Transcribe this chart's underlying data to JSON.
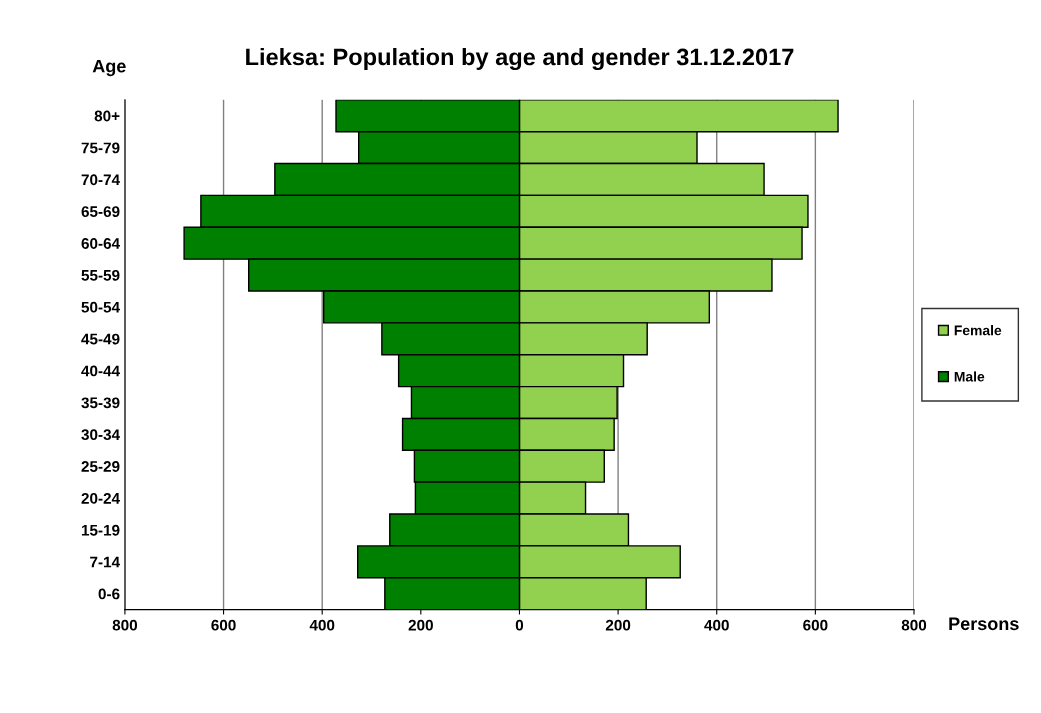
{
  "chart_data": {
    "type": "bar",
    "orientation": "horizontal",
    "stacked": true,
    "title": "Lieksa: Population by age and gender 31.12.2017",
    "xlabel": "Persons",
    "ylabel": "Age",
    "categories": [
      "80+",
      "75-79",
      "70-74",
      "65-69",
      "60-64",
      "55-59",
      "50-54",
      "45-49",
      "40-44",
      "35-39",
      "30-34",
      "25-29",
      "20-24",
      "15-19",
      "7-14",
      "0-6"
    ],
    "series": [
      {
        "name": "Female",
        "color": "#92d050",
        "values": [
          646,
          360,
          496,
          585,
          573,
          512,
          385,
          259,
          211,
          198,
          192,
          172,
          134,
          221,
          326,
          257
        ]
      },
      {
        "name": "Male",
        "color": "#008000",
        "values": [
          -372,
          -326,
          -496,
          -646,
          -680,
          -549,
          -397,
          -279,
          -245,
          -219,
          -237,
          -213,
          -211,
          -263,
          -328,
          -273
        ]
      }
    ],
    "xlim": [
      -800,
      800
    ],
    "xticks": [
      {
        "value": -800,
        "label": "800"
      },
      {
        "value": -600,
        "label": "600"
      },
      {
        "value": -400,
        "label": "400"
      },
      {
        "value": -200,
        "label": "200"
      },
      0,
      200,
      400,
      600,
      800
    ],
    "grid": "x",
    "legend": "right"
  }
}
